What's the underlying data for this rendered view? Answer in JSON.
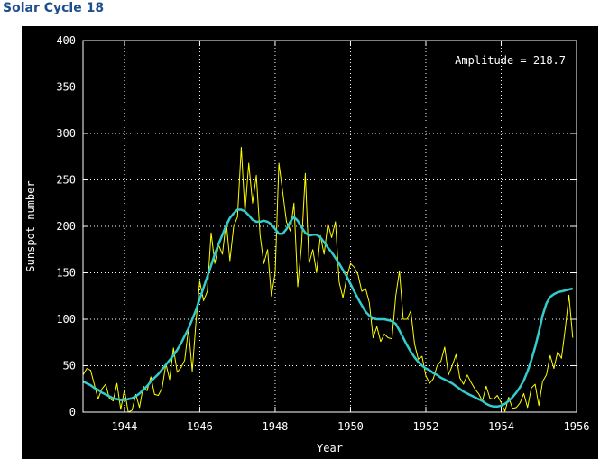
{
  "page": {
    "title": "Solar Cycle 18"
  },
  "chart_data": {
    "type": "line",
    "title": "Solar Cycle 18",
    "xlabel": "Year",
    "ylabel": "Sunspot number",
    "annotation": "Amplitude = 218.7",
    "xlim": [
      1942.9,
      1956.0
    ],
    "ylim": [
      0,
      400
    ],
    "x_ticks": [
      1944,
      1946,
      1948,
      1950,
      1952,
      1954,
      1956
    ],
    "y_ticks": [
      0,
      50,
      100,
      150,
      200,
      250,
      300,
      350,
      400
    ],
    "grid": true,
    "background": "#000000",
    "colors": {
      "monthly": "#ffff00",
      "smoothed": "#33cccc",
      "axes": "#ffffff",
      "grid": "#ffffff",
      "title": "#1f4e8c"
    },
    "series": [
      {
        "style": "monthly",
        "x": [
          1942.9,
          1943.0,
          1943.1,
          1943.2,
          1943.3,
          1943.4,
          1943.5,
          1943.6,
          1943.7,
          1943.8,
          1943.9,
          1944.0,
          1944.1,
          1944.2,
          1944.3,
          1944.4,
          1944.5,
          1944.6,
          1944.7,
          1944.8,
          1944.9,
          1945.0,
          1945.1,
          1945.2,
          1945.3,
          1945.4,
          1945.5,
          1945.6,
          1945.7,
          1945.8,
          1945.9,
          1946.0,
          1946.1,
          1946.2,
          1946.3,
          1946.4,
          1946.5,
          1946.6,
          1946.7,
          1946.8,
          1946.9,
          1947.0,
          1947.1,
          1947.2,
          1947.3,
          1947.4,
          1947.5,
          1947.6,
          1947.7,
          1947.8,
          1947.9,
          1948.0,
          1948.1,
          1948.2,
          1948.3,
          1948.4,
          1948.5,
          1948.6,
          1948.7,
          1948.8,
          1948.9,
          1949.0,
          1949.1,
          1949.2,
          1949.3,
          1949.4,
          1949.5,
          1949.6,
          1949.7,
          1949.8,
          1949.9,
          1950.0,
          1950.1,
          1950.2,
          1950.3,
          1950.4,
          1950.5,
          1950.6,
          1950.7,
          1950.8,
          1950.9,
          1951.0,
          1951.1,
          1951.2,
          1951.3,
          1951.4,
          1951.5,
          1951.6,
          1951.7,
          1951.8,
          1951.9,
          1952.0,
          1952.1,
          1952.2,
          1952.3,
          1952.4,
          1952.5,
          1952.6,
          1952.7,
          1952.8,
          1952.9,
          1953.0,
          1953.1,
          1953.2,
          1953.3,
          1953.4,
          1953.5,
          1953.6,
          1953.7,
          1953.8,
          1953.9,
          1954.0,
          1954.1,
          1954.2,
          1954.3,
          1954.4,
          1954.5,
          1954.6,
          1954.7,
          1954.8,
          1954.9,
          1955.0,
          1955.1,
          1955.2,
          1955.3,
          1955.4,
          1955.5,
          1955.6,
          1955.7,
          1955.8,
          1955.9
        ],
        "y": [
          40,
          47,
          45,
          30,
          14,
          25,
          30,
          15,
          12,
          31,
          3,
          24,
          0,
          2,
          19,
          5,
          28,
          23,
          38,
          19,
          18,
          26,
          52,
          35,
          69,
          43,
          48,
          56,
          90,
          44,
          98,
          141,
          120,
          130,
          193,
          160,
          180,
          170,
          205,
          163,
          200,
          210,
          285,
          215,
          268,
          225,
          255,
          190,
          160,
          175,
          125,
          150,
          268,
          237,
          205,
          195,
          225,
          135,
          180,
          257,
          160,
          175,
          150,
          190,
          170,
          203,
          188,
          205,
          140,
          123,
          145,
          160,
          156,
          148,
          130,
          133,
          118,
          80,
          92,
          76,
          84,
          80,
          79,
          125,
          152,
          100,
          100,
          109,
          73,
          57,
          60,
          39,
          31,
          36,
          50,
          55,
          70,
          40,
          50,
          62,
          37,
          30,
          40,
          32,
          25,
          20,
          12,
          28,
          15,
          14,
          18,
          10,
          1,
          16,
          4,
          5,
          10,
          20,
          5,
          26,
          30,
          7,
          33,
          40,
          61,
          47,
          65,
          58,
          90,
          126,
          80
        ],
        "name": ""
      },
      {
        "style": "smoothed",
        "x": [
          1942.9,
          1943.0,
          1943.1,
          1943.2,
          1943.3,
          1943.4,
          1943.5,
          1943.6,
          1943.7,
          1943.8,
          1943.9,
          1944.0,
          1944.1,
          1944.2,
          1944.3,
          1944.4,
          1944.5,
          1944.6,
          1944.7,
          1944.8,
          1944.9,
          1945.0,
          1945.1,
          1945.2,
          1945.3,
          1945.4,
          1945.5,
          1945.6,
          1945.7,
          1945.8,
          1945.9,
          1946.0,
          1946.1,
          1946.2,
          1946.3,
          1946.4,
          1946.5,
          1946.6,
          1946.7,
          1946.8,
          1946.9,
          1947.0,
          1947.1,
          1947.2,
          1947.3,
          1947.4,
          1947.5,
          1947.6,
          1947.7,
          1947.8,
          1947.9,
          1948.0,
          1948.1,
          1948.2,
          1948.3,
          1948.4,
          1948.5,
          1948.6,
          1948.7,
          1948.8,
          1948.9,
          1949.0,
          1949.1,
          1949.2,
          1949.3,
          1949.4,
          1949.5,
          1949.6,
          1949.7,
          1949.8,
          1949.9,
          1950.0,
          1950.1,
          1950.2,
          1950.3,
          1950.4,
          1950.5,
          1950.6,
          1950.7,
          1950.8,
          1950.9,
          1951.0,
          1951.1,
          1951.2,
          1951.3,
          1951.4,
          1951.5,
          1951.6,
          1951.7,
          1951.8,
          1951.9,
          1952.0,
          1952.1,
          1952.2,
          1952.3,
          1952.4,
          1952.5,
          1952.6,
          1952.7,
          1952.8,
          1952.9,
          1953.0,
          1953.1,
          1953.2,
          1953.3,
          1953.4,
          1953.5,
          1953.6,
          1953.7,
          1953.8,
          1953.9,
          1954.0,
          1954.1,
          1954.2,
          1954.3,
          1954.4,
          1954.5,
          1954.6,
          1954.7,
          1954.8,
          1954.9,
          1955.0,
          1955.1,
          1955.2,
          1955.3,
          1955.4,
          1955.5,
          1955.6,
          1955.7,
          1955.8,
          1955.9
        ],
        "y": [
          33,
          31,
          29,
          26,
          24,
          21,
          19,
          17,
          15,
          14,
          13,
          13,
          14,
          15,
          17,
          20,
          24,
          28,
          33,
          37,
          41,
          46,
          51,
          56,
          61,
          67,
          74,
          82,
          90,
          100,
          110,
          122,
          134,
          146,
          158,
          170,
          181,
          191,
          201,
          209,
          214,
          218,
          218,
          216,
          212,
          207,
          205,
          205,
          206,
          205,
          202,
          197,
          192,
          192,
          197,
          205,
          210,
          206,
          199,
          193,
          190,
          191,
          191,
          188,
          183,
          177,
          172,
          166,
          160,
          153,
          146,
          138,
          130,
          122,
          115,
          108,
          104,
          101,
          100,
          100,
          100,
          99,
          98,
          95,
          88,
          80,
          72,
          65,
          59,
          54,
          50,
          47,
          45,
          42,
          40,
          37,
          35,
          33,
          31,
          28,
          25,
          22,
          20,
          18,
          16,
          14,
          12,
          9,
          7,
          6,
          6,
          7,
          9,
          12,
          16,
          21,
          27,
          34,
          44,
          56,
          70,
          86,
          104,
          117,
          124,
          127,
          129,
          130,
          131,
          132,
          133
        ],
        "name": ""
      }
    ]
  }
}
